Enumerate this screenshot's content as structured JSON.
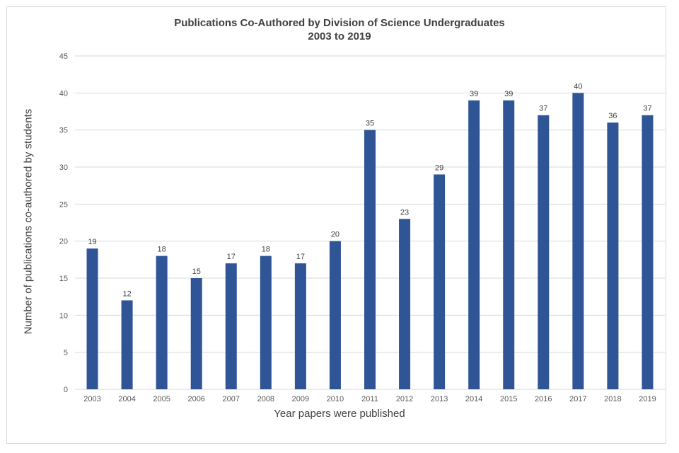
{
  "chart_data": {
    "type": "bar",
    "title": "Publications Co-Authored by Division of Science Undergraduates",
    "subtitle": "2003 to 2019",
    "xlabel": "Year papers were published",
    "ylabel": "Number of publications co-authored by students",
    "categories": [
      "2003",
      "2004",
      "2005",
      "2006",
      "2007",
      "2008",
      "2009",
      "2010",
      "2011",
      "2012",
      "2013",
      "2014",
      "2015",
      "2016",
      "2017",
      "2018",
      "2019"
    ],
    "values": [
      19,
      12,
      18,
      15,
      17,
      18,
      17,
      20,
      35,
      23,
      29,
      39,
      39,
      37,
      40,
      36,
      37
    ],
    "ylim": [
      0,
      45
    ],
    "yticks": [
      0,
      5,
      10,
      15,
      20,
      25,
      30,
      35,
      40,
      45
    ],
    "grid": true,
    "legend": "none",
    "bar_color": "#2F5597",
    "show_data_labels": true
  }
}
